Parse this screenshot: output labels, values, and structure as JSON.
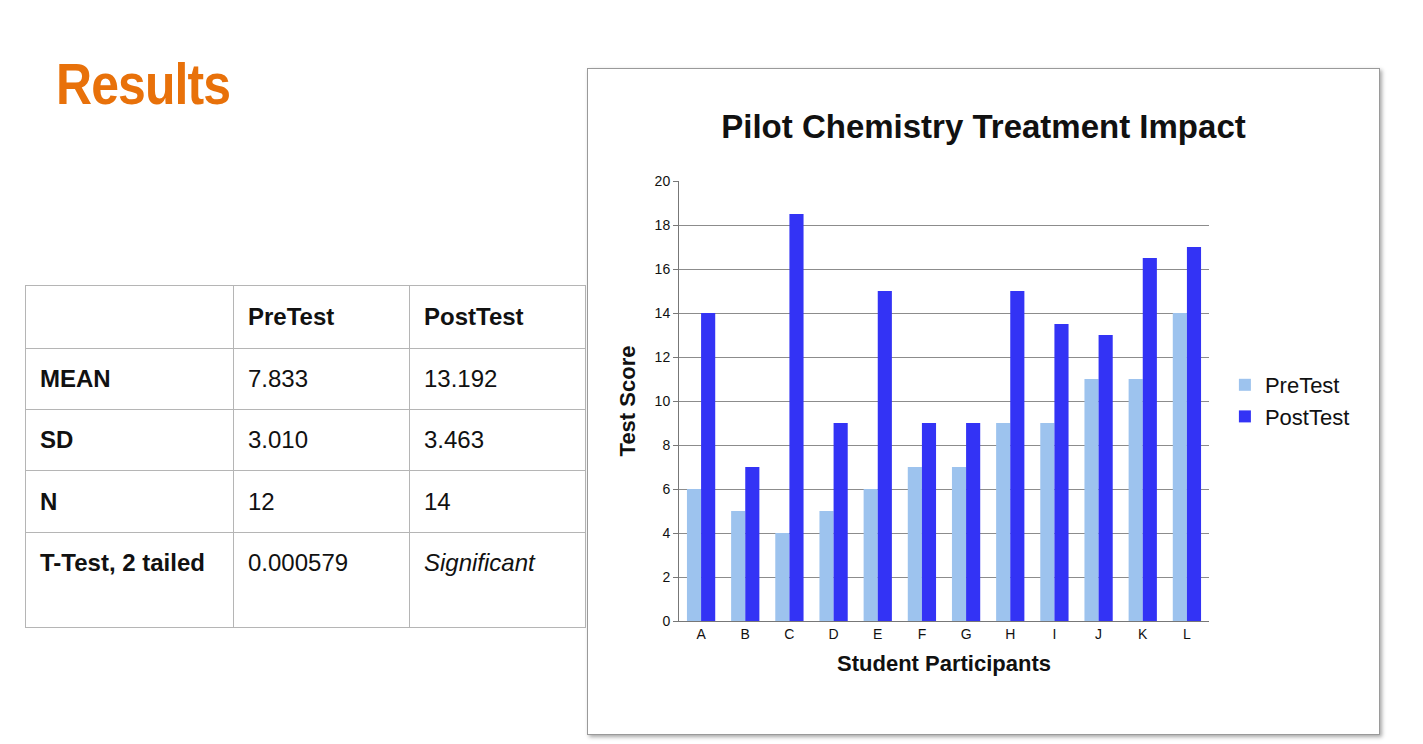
{
  "heading": "Results",
  "table": {
    "columns": [
      "PreTest",
      "PostTest"
    ],
    "rows": [
      {
        "label": "MEAN",
        "cells": [
          "7.833",
          "13.192"
        ]
      },
      {
        "label": "SD",
        "cells": [
          "3.010",
          "3.463"
        ]
      },
      {
        "label": "N",
        "cells": [
          "12",
          "14"
        ]
      },
      {
        "label": "T-Test, 2 tailed",
        "cells": [
          "0.000579",
          "Significant"
        ]
      }
    ]
  },
  "chart_data": {
    "type": "bar",
    "title": "Pilot Chemistry Treatment Impact",
    "x_label": "Student Participants",
    "y_label": "Test Score",
    "categories": [
      "A",
      "B",
      "C",
      "D",
      "E",
      "F",
      "G",
      "H",
      "I",
      "J",
      "K",
      "L"
    ],
    "series": [
      {
        "name": "PreTest",
        "color": "#9dc3ee",
        "values": [
          6,
          5,
          4,
          5,
          6,
          7,
          7,
          9,
          9,
          11,
          11,
          14
        ]
      },
      {
        "name": "PostTest",
        "color": "#3333f5",
        "values": [
          14,
          7,
          18.5,
          9,
          15,
          9,
          9,
          15,
          13.5,
          13,
          16.5,
          17
        ]
      }
    ],
    "ylim": [
      0,
      20
    ],
    "yticks": [
      0,
      2,
      4,
      6,
      8,
      10,
      12,
      14,
      16,
      18,
      20
    ],
    "grid": true,
    "legend": "right"
  }
}
